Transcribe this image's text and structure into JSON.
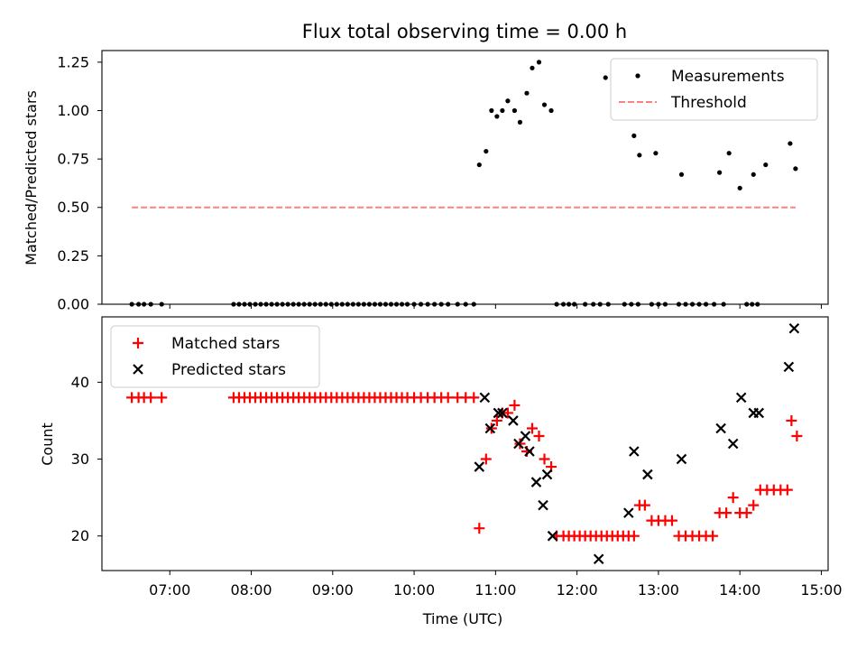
{
  "chart_data": [
    {
      "type": "scatter",
      "title": "Flux total observing time = 0.00 h",
      "xlabel": "",
      "ylabel": "Matched/Predicted stars",
      "xlim": [
        "06:10",
        "15:05"
      ],
      "ylim": [
        0,
        1.31
      ],
      "yticks": [
        "0.00",
        "0.25",
        "0.50",
        "0.75",
        "1.00",
        "1.25"
      ],
      "ytick_values": [
        0,
        0.25,
        0.5,
        0.75,
        1.0,
        1.25
      ],
      "grid": false,
      "legend": "top-right",
      "series": [
        {
          "name": "Measurements",
          "marker": "dot",
          "color": "#000000",
          "points": [
            [
              "06:32",
              0
            ],
            [
              "06:37",
              0
            ],
            [
              "06:41",
              0
            ],
            [
              "06:46",
              0
            ],
            [
              "06:54",
              0
            ],
            [
              "07:47",
              0
            ],
            [
              "07:51",
              0
            ],
            [
              "07:55",
              0
            ],
            [
              "07:59",
              0
            ],
            [
              "08:03",
              0
            ],
            [
              "08:07",
              0
            ],
            [
              "08:11",
              0
            ],
            [
              "08:15",
              0
            ],
            [
              "08:19",
              0
            ],
            [
              "08:23",
              0
            ],
            [
              "08:27",
              0
            ],
            [
              "08:31",
              0
            ],
            [
              "08:35",
              0
            ],
            [
              "08:39",
              0
            ],
            [
              "08:43",
              0
            ],
            [
              "08:47",
              0
            ],
            [
              "08:51",
              0
            ],
            [
              "08:55",
              0
            ],
            [
              "08:59",
              0
            ],
            [
              "09:03",
              0
            ],
            [
              "09:07",
              0
            ],
            [
              "09:11",
              0
            ],
            [
              "09:15",
              0
            ],
            [
              "09:19",
              0
            ],
            [
              "09:23",
              0
            ],
            [
              "09:27",
              0
            ],
            [
              "09:31",
              0
            ],
            [
              "09:35",
              0
            ],
            [
              "09:39",
              0
            ],
            [
              "09:43",
              0
            ],
            [
              "09:47",
              0
            ],
            [
              "09:51",
              0
            ],
            [
              "09:55",
              0
            ],
            [
              "10:00",
              0
            ],
            [
              "10:05",
              0
            ],
            [
              "10:10",
              0
            ],
            [
              "10:15",
              0
            ],
            [
              "10:20",
              0
            ],
            [
              "10:25",
              0
            ],
            [
              "10:32",
              0
            ],
            [
              "10:38",
              0
            ],
            [
              "10:44",
              0
            ],
            [
              "10:48",
              0.72
            ],
            [
              "10:53",
              0.79
            ],
            [
              "10:57",
              1.0
            ],
            [
              "11:01",
              0.97
            ],
            [
              "11:05",
              1.0
            ],
            [
              "11:09",
              1.05
            ],
            [
              "11:14",
              1.0
            ],
            [
              "11:18",
              0.94
            ],
            [
              "11:23",
              1.09
            ],
            [
              "11:27",
              1.22
            ],
            [
              "11:32",
              1.25
            ],
            [
              "11:36",
              1.03
            ],
            [
              "11:41",
              1.0
            ],
            [
              "11:45",
              0
            ],
            [
              "11:50",
              0
            ],
            [
              "11:54",
              0
            ],
            [
              "11:58",
              0
            ],
            [
              "12:06",
              0
            ],
            [
              "12:12",
              0
            ],
            [
              "12:17",
              0
            ],
            [
              "12:23",
              0
            ],
            [
              "12:21",
              1.17
            ],
            [
              "12:35",
              0
            ],
            [
              "12:40",
              0
            ],
            [
              "12:45",
              0
            ],
            [
              "12:55",
              0
            ],
            [
              "13:00",
              0
            ],
            [
              "13:05",
              0
            ],
            [
              "13:15",
              0
            ],
            [
              "13:20",
              0
            ],
            [
              "13:25",
              0
            ],
            [
              "13:30",
              0
            ],
            [
              "13:35",
              0
            ],
            [
              "13:41",
              0
            ],
            [
              "13:48",
              0
            ],
            [
              "14:05",
              0
            ],
            [
              "14:09",
              0
            ],
            [
              "14:13",
              0
            ],
            [
              "12:42",
              0.87
            ],
            [
              "12:46",
              0.77
            ],
            [
              "12:58",
              0.78
            ],
            [
              "13:17",
              0.67
            ],
            [
              "13:45",
              0.68
            ],
            [
              "13:52",
              0.78
            ],
            [
              "14:00",
              0.6
            ],
            [
              "14:10",
              0.67
            ],
            [
              "14:19",
              0.72
            ],
            [
              "14:37",
              0.83
            ],
            [
              "14:41",
              0.7
            ]
          ]
        },
        {
          "name": "Threshold",
          "marker": "dashed-line",
          "color": "#ff8080",
          "points": [
            [
              "06:32",
              0.5
            ],
            [
              "14:41",
              0.5
            ]
          ]
        }
      ]
    },
    {
      "type": "scatter",
      "title": "",
      "xlabel": "Time (UTC)",
      "ylabel": "Count",
      "xlim": [
        "06:10",
        "15:05"
      ],
      "ylim": [
        15.5,
        48.5
      ],
      "xticks": [
        "07:00",
        "08:00",
        "09:00",
        "10:00",
        "11:00",
        "12:00",
        "13:00",
        "14:00",
        "15:00"
      ],
      "yticks": [
        "20",
        "30",
        "40"
      ],
      "ytick_values": [
        20,
        30,
        40
      ],
      "grid": false,
      "legend": "top-left",
      "series": [
        {
          "name": "Matched stars",
          "marker": "plus",
          "color": "#ff0000",
          "points": [
            [
              "06:32",
              38
            ],
            [
              "06:37",
              38
            ],
            [
              "06:41",
              38
            ],
            [
              "06:46",
              38
            ],
            [
              "06:54",
              38
            ],
            [
              "07:47",
              38
            ],
            [
              "07:51",
              38
            ],
            [
              "07:55",
              38
            ],
            [
              "07:59",
              38
            ],
            [
              "08:03",
              38
            ],
            [
              "08:07",
              38
            ],
            [
              "08:11",
              38
            ],
            [
              "08:15",
              38
            ],
            [
              "08:19",
              38
            ],
            [
              "08:23",
              38
            ],
            [
              "08:27",
              38
            ],
            [
              "08:31",
              38
            ],
            [
              "08:35",
              38
            ],
            [
              "08:39",
              38
            ],
            [
              "08:43",
              38
            ],
            [
              "08:47",
              38
            ],
            [
              "08:51",
              38
            ],
            [
              "08:55",
              38
            ],
            [
              "08:59",
              38
            ],
            [
              "09:03",
              38
            ],
            [
              "09:07",
              38
            ],
            [
              "09:11",
              38
            ],
            [
              "09:15",
              38
            ],
            [
              "09:19",
              38
            ],
            [
              "09:23",
              38
            ],
            [
              "09:27",
              38
            ],
            [
              "09:31",
              38
            ],
            [
              "09:35",
              38
            ],
            [
              "09:39",
              38
            ],
            [
              "09:43",
              38
            ],
            [
              "09:47",
              38
            ],
            [
              "09:51",
              38
            ],
            [
              "09:55",
              38
            ],
            [
              "10:00",
              38
            ],
            [
              "10:05",
              38
            ],
            [
              "10:10",
              38
            ],
            [
              "10:15",
              38
            ],
            [
              "10:20",
              38
            ],
            [
              "10:25",
              38
            ],
            [
              "10:32",
              38
            ],
            [
              "10:38",
              38
            ],
            [
              "10:44",
              38
            ],
            [
              "10:48",
              21
            ],
            [
              "10:53",
              30
            ],
            [
              "10:57",
              34
            ],
            [
              "11:01",
              35
            ],
            [
              "11:05",
              36
            ],
            [
              "11:09",
              36
            ],
            [
              "11:14",
              37
            ],
            [
              "11:18",
              32
            ],
            [
              "11:23",
              31
            ],
            [
              "11:27",
              34
            ],
            [
              "11:32",
              33
            ],
            [
              "11:36",
              30
            ],
            [
              "11:41",
              29
            ],
            [
              "11:45",
              20
            ],
            [
              "11:50",
              20
            ],
            [
              "11:54",
              20
            ],
            [
              "11:58",
              20
            ],
            [
              "12:02",
              20
            ],
            [
              "12:06",
              20
            ],
            [
              "12:10",
              20
            ],
            [
              "12:14",
              20
            ],
            [
              "12:18",
              20
            ],
            [
              "12:22",
              20
            ],
            [
              "12:26",
              20
            ],
            [
              "12:30",
              20
            ],
            [
              "12:34",
              20
            ],
            [
              "12:38",
              20
            ],
            [
              "12:42",
              20
            ],
            [
              "12:46",
              24
            ],
            [
              "12:50",
              24
            ],
            [
              "12:55",
              22
            ],
            [
              "13:00",
              22
            ],
            [
              "13:05",
              22
            ],
            [
              "13:10",
              22
            ],
            [
              "13:15",
              20
            ],
            [
              "13:20",
              20
            ],
            [
              "13:25",
              20
            ],
            [
              "13:30",
              20
            ],
            [
              "13:35",
              20
            ],
            [
              "13:40",
              20
            ],
            [
              "13:45",
              23
            ],
            [
              "13:50",
              23
            ],
            [
              "13:55",
              25
            ],
            [
              "14:00",
              23
            ],
            [
              "14:05",
              23
            ],
            [
              "14:10",
              24
            ],
            [
              "14:15",
              26
            ],
            [
              "14:20",
              26
            ],
            [
              "14:25",
              26
            ],
            [
              "14:30",
              26
            ],
            [
              "14:35",
              26
            ],
            [
              "14:38",
              35
            ],
            [
              "14:42",
              33
            ]
          ]
        },
        {
          "name": "Predicted stars",
          "marker": "x",
          "color": "#000000",
          "points": [
            [
              "10:48",
              29
            ],
            [
              "10:52",
              38
            ],
            [
              "10:56",
              34
            ],
            [
              "11:02",
              36
            ],
            [
              "11:05",
              36
            ],
            [
              "11:13",
              35
            ],
            [
              "11:17",
              32
            ],
            [
              "11:22",
              33
            ],
            [
              "11:25",
              31
            ],
            [
              "11:30",
              27
            ],
            [
              "11:35",
              24
            ],
            [
              "11:38",
              28
            ],
            [
              "11:42",
              20
            ],
            [
              "12:16",
              17
            ],
            [
              "12:38",
              23
            ],
            [
              "12:42",
              31
            ],
            [
              "12:52",
              28
            ],
            [
              "13:17",
              30
            ],
            [
              "13:46",
              34
            ],
            [
              "13:55",
              32
            ],
            [
              "14:01",
              38
            ],
            [
              "14:10",
              36
            ],
            [
              "14:14",
              36
            ],
            [
              "14:36",
              42
            ],
            [
              "14:40",
              47
            ]
          ]
        }
      ]
    }
  ]
}
